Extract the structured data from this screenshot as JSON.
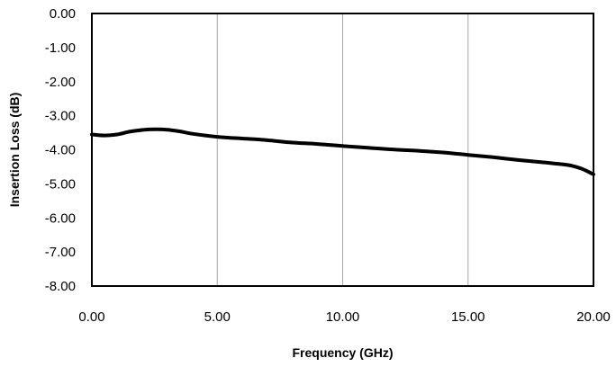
{
  "chart_data": {
    "type": "line",
    "title": "",
    "xlabel": "Frequency (GHz)",
    "ylabel": "Insertion Loss (dB)",
    "xlim": [
      0,
      20
    ],
    "ylim": [
      -8,
      0
    ],
    "x_ticks": [
      0,
      5,
      10,
      15,
      20
    ],
    "x_tick_labels": [
      "0.00",
      "5.00",
      "10.00",
      "15.00",
      "20.00"
    ],
    "y_ticks": [
      0,
      -1,
      -2,
      -3,
      -4,
      -5,
      -6,
      -7,
      -8
    ],
    "y_tick_labels": [
      "0.00",
      "-1.00",
      "-2.00",
      "-3.00",
      "-4.00",
      "-5.00",
      "-6.00",
      "-7.00",
      "-8.00"
    ],
    "grid": "vertical",
    "legend": "none",
    "line_color": "#000000",
    "series": [
      {
        "x": [
          0,
          0.5,
          1,
          1.5,
          2,
          2.5,
          3,
          3.5,
          4,
          5,
          6,
          7,
          8,
          9,
          10,
          11,
          12,
          13,
          14,
          15,
          16,
          17,
          18,
          19,
          19.5,
          20
        ],
        "y": [
          -3.55,
          -3.58,
          -3.55,
          -3.47,
          -3.42,
          -3.4,
          -3.41,
          -3.46,
          -3.53,
          -3.62,
          -3.67,
          -3.72,
          -3.79,
          -3.83,
          -3.89,
          -3.94,
          -3.99,
          -4.03,
          -4.08,
          -4.15,
          -4.22,
          -4.3,
          -4.37,
          -4.45,
          -4.55,
          -4.72
        ]
      }
    ]
  }
}
